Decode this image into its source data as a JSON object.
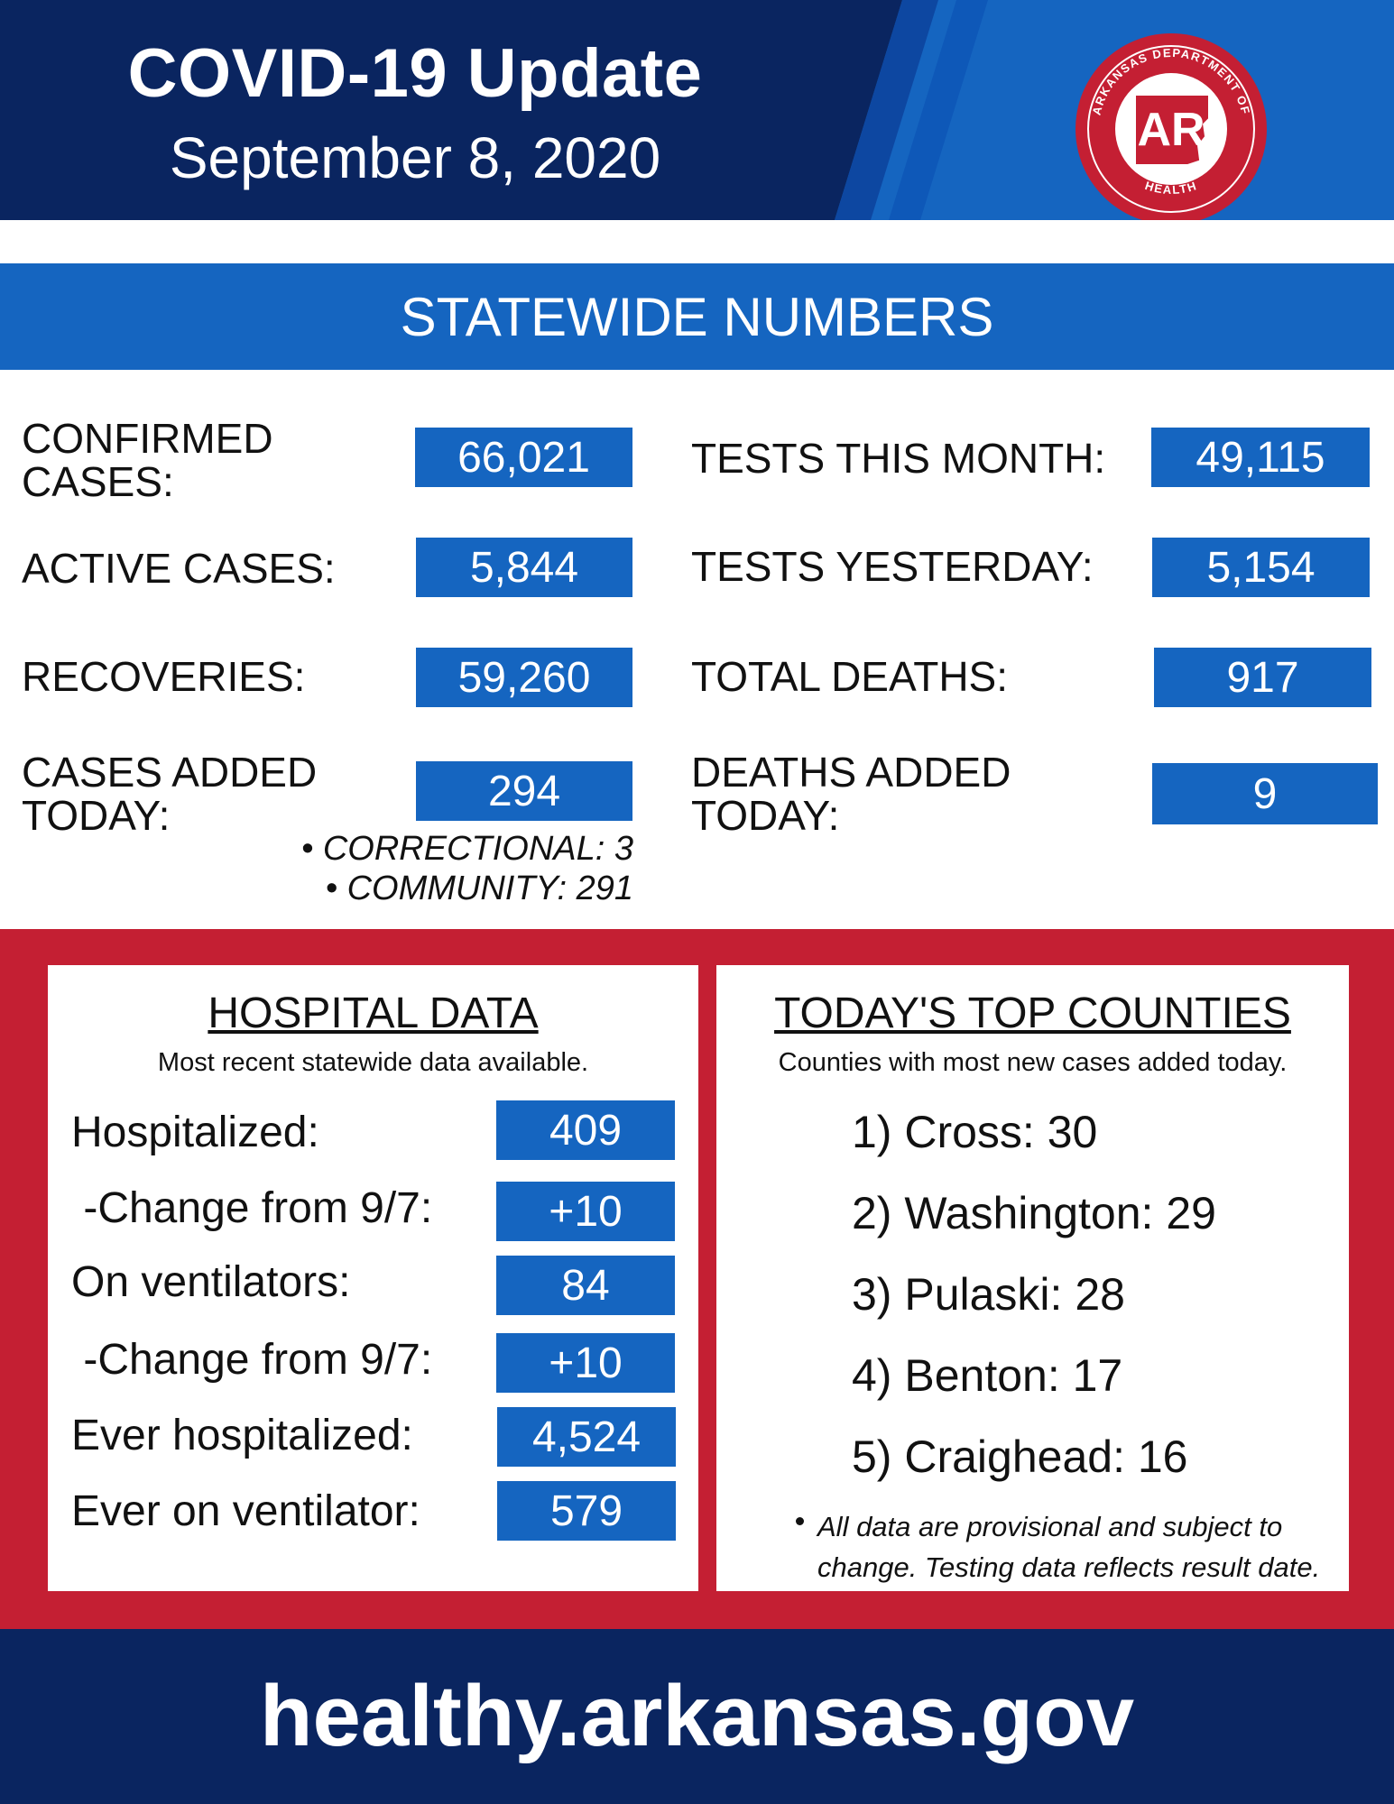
{
  "header": {
    "title": "COVID-19 Update",
    "date": "September 8, 2020",
    "seal": {
      "text_top": "ARKANSAS DEPARTMENT OF",
      "text_bottom": "HEALTH",
      "monogram": "AR",
      "color": "#c41f33"
    }
  },
  "statewide": {
    "heading": "STATEWIDE NUMBERS",
    "left": [
      {
        "label": "CONFIRMED\nCASES:",
        "value": "66,021"
      },
      {
        "label": "ACTIVE CASES:",
        "value": "5,844"
      },
      {
        "label": "RECOVERIES:",
        "value": "59,260"
      },
      {
        "label": "CASES ADDED\nTODAY:",
        "value": "294"
      }
    ],
    "right": [
      {
        "label": "TESTS THIS MONTH:",
        "value": "49,115"
      },
      {
        "label": "TESTS YESTERDAY:",
        "value": "5,154"
      },
      {
        "label": "TOTAL DEATHS:",
        "value": "917"
      },
      {
        "label": "DEATHS ADDED\nTODAY:",
        "value": "9"
      }
    ],
    "breakdown": [
      "• CORRECTIONAL: 3",
      "• COMMUNITY: 291"
    ]
  },
  "hospital": {
    "title": "HOSPITAL DATA",
    "subtitle": "Most recent statewide data available.",
    "rows": [
      {
        "label": "Hospitalized:",
        "value": "409"
      },
      {
        "label": " -Change from 9/7:",
        "value": "+10"
      },
      {
        "label": "On ventilators:",
        "value": "84"
      },
      {
        "label": " -Change from 9/7:",
        "value": "+10"
      },
      {
        "label": "Ever hospitalized:",
        "value": "4,524"
      },
      {
        "label": "Ever on ventilator:",
        "value": "579"
      }
    ]
  },
  "counties": {
    "title": "TODAY'S TOP COUNTIES",
    "subtitle": "Counties with most new cases added today.",
    "items": [
      "1) Cross: 30",
      "2) Washington: 29",
      "3) Pulaski: 28",
      "4) Benton: 17",
      "5) Craighead: 16"
    ],
    "note": "All data are provisional and subject to change. Testing data reflects result date."
  },
  "footer": {
    "url": "healthy.arkansas.gov"
  },
  "colors": {
    "navy": "#0a2560",
    "blue": "#1565c0",
    "red": "#c41f33"
  }
}
